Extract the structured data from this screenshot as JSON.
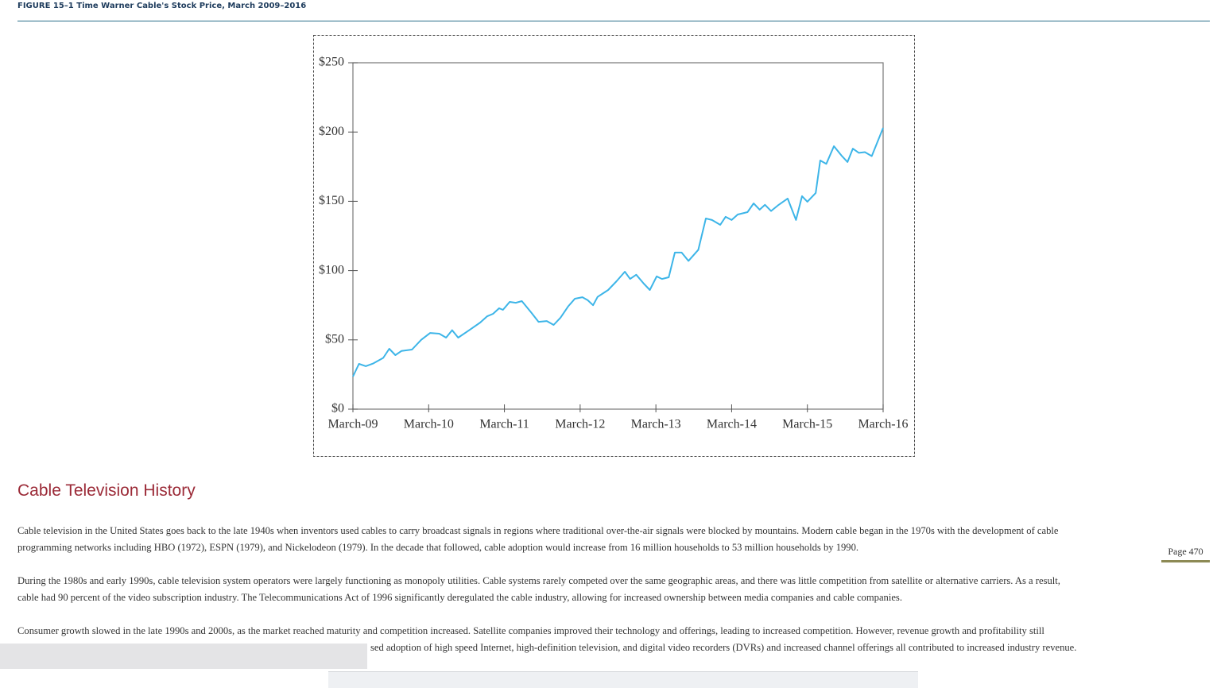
{
  "figure_caption": "FIGURE 15–1 Time Warner Cable's Stock Price, March 2009–2016",
  "chart_data": {
    "type": "line",
    "x": [
      0,
      0.08,
      0.17,
      0.27,
      0.4,
      0.48,
      0.56,
      0.64,
      0.78,
      0.9,
      1.02,
      1.14,
      1.23,
      1.31,
      1.39,
      1.53,
      1.68,
      1.77,
      1.85,
      1.93,
      1.98,
      2.07,
      2.15,
      2.23,
      2.35,
      2.45,
      2.56,
      2.65,
      2.74,
      2.84,
      2.93,
      3.03,
      3.1,
      3.17,
      3.23,
      3.37,
      3.48,
      3.59,
      3.66,
      3.74,
      3.84,
      3.92,
      4.01,
      4.08,
      4.17,
      4.25,
      4.34,
      4.43,
      4.56,
      4.66,
      4.74,
      4.85,
      4.92,
      5.0,
      5.08,
      5.21,
      5.29,
      5.37,
      5.44,
      5.52,
      5.61,
      5.74,
      5.85,
      5.93,
      6.0,
      6.11,
      6.17,
      6.25,
      6.35,
      6.45,
      6.53,
      6.6,
      6.68,
      6.76,
      6.85,
      7.0
    ],
    "values": [
      23.5,
      32.7,
      31,
      33,
      37,
      43.6,
      39,
      42,
      43,
      50,
      55,
      54.5,
      51.6,
      57,
      51.6,
      56.8,
      62.5,
      67,
      68.8,
      72.8,
      71.7,
      77.4,
      76.8,
      78,
      70,
      63,
      63.6,
      60.8,
      66,
      74,
      79.7,
      80.8,
      78.6,
      75,
      81,
      86,
      92.3,
      99.2,
      94,
      97,
      90.6,
      86,
      95.8,
      94,
      95.2,
      113,
      113,
      107,
      115,
      137.6,
      136.5,
      133,
      138.8,
      136.5,
      140.5,
      142.2,
      148.5,
      144,
      147.5,
      143,
      147,
      152,
      136.5,
      153.7,
      149.7,
      156,
      179.5,
      177,
      189.8,
      183,
      178.4,
      188,
      185,
      185.5,
      182.6,
      203
    ],
    "color": "#3db5e8",
    "xlim": [
      0,
      7
    ],
    "xticks": [
      {
        "value": 0,
        "label": "March-09"
      },
      {
        "value": 1,
        "label": "March-10"
      },
      {
        "value": 2,
        "label": "March-11"
      },
      {
        "value": 3,
        "label": "March-12"
      },
      {
        "value": 4,
        "label": "March-13"
      },
      {
        "value": 5,
        "label": "March-14"
      },
      {
        "value": 6,
        "label": "March-15"
      },
      {
        "value": 7,
        "label": "March-16"
      }
    ],
    "ylim": [
      0,
      250
    ],
    "yticks": [
      {
        "value": 0,
        "label": "$0"
      },
      {
        "value": 50,
        "label": "$50"
      },
      {
        "value": 100,
        "label": "$100"
      },
      {
        "value": 150,
        "label": "$150"
      },
      {
        "value": 200,
        "label": "$200"
      },
      {
        "value": 250,
        "label": "$250"
      }
    ],
    "grid": false
  },
  "section_title": "Cable Television History",
  "paragraphs": [
    {
      "lines": [
        "Cable television in the United States goes back to the late 1940s when inventors used cables to carry broadcast signals in regions where traditional over-the-air signals were blocked by mountains. Modern cable began in the 1970s with the development of cable",
        "programming networks including HBO (1972), ESPN (1979), and Nickelodeon (1979). In the decade that followed, cable adoption would increase from 16 million households to 53 million households by 1990."
      ]
    },
    {
      "lines": [
        "During the 1980s and early 1990s, cable television system operators were largely functioning as monopoly utilities. Cable systems rarely competed over the same geographic areas, and there was little competition from satellite or alternative carriers. As a result,",
        "cable had 90 percent of the video subscription industry. The Telecommunications Act of 1996 significantly deregulated the cable industry, allowing for increased ownership between media companies and cable companies."
      ]
    },
    {
      "lines": [
        "Consumer growth slowed in the late 1990s and 2000s, as the market reached maturity and competition increased. Satellite companies improved their technology and offerings, leading to increased competition. However, revenue growth and profitability still",
        "sed adoption of high speed Internet, high-definition television, and digital video recorders (DVRs) and increased channel offerings all contributed to increased industry revenue."
      ]
    }
  ],
  "page_label": "Page 470"
}
